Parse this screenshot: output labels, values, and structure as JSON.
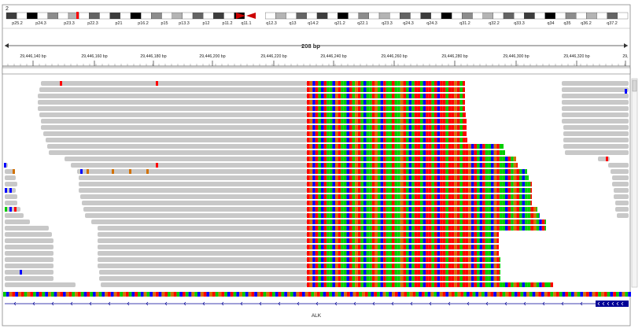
{
  "chromosome": {
    "name": "2",
    "bands": [
      "p25.2",
      "p24.3",
      "p23.3",
      "p22.3",
      "p21",
      "p16.2",
      "p15",
      "p13.3",
      "p12",
      "p11.2",
      "q11.1",
      "q12.3",
      "q13",
      "q14.2",
      "q21.2",
      "q22.1",
      "q23.3",
      "q24.3",
      "q24.3",
      "q31.2",
      "q32.2",
      "q33.3",
      "q34",
      "q35",
      "q36.2",
      "q37.2"
    ]
  },
  "ruler": {
    "span_label": "208 bp",
    "ticks": [
      "29,446,140 bp",
      "29,446,160 bp",
      "29,446,180 bp",
      "29,446,200 bp",
      "29,446,220 bp",
      "29,446,240 bp",
      "29,446,260 bp",
      "29,446,280 bp",
      "29,446,300 bp",
      "29,446,320 bp",
      "29,"
    ]
  },
  "gene": {
    "name": "ALK"
  },
  "colors": {
    "read_gray": "#c8c8c8",
    "base_A": "#00cc00",
    "base_C": "#0000ff",
    "base_G": "#d17105",
    "base_T": "#ff0000",
    "gene_blue": "#000096",
    "ideogram_centromere": "#cc0000"
  }
}
